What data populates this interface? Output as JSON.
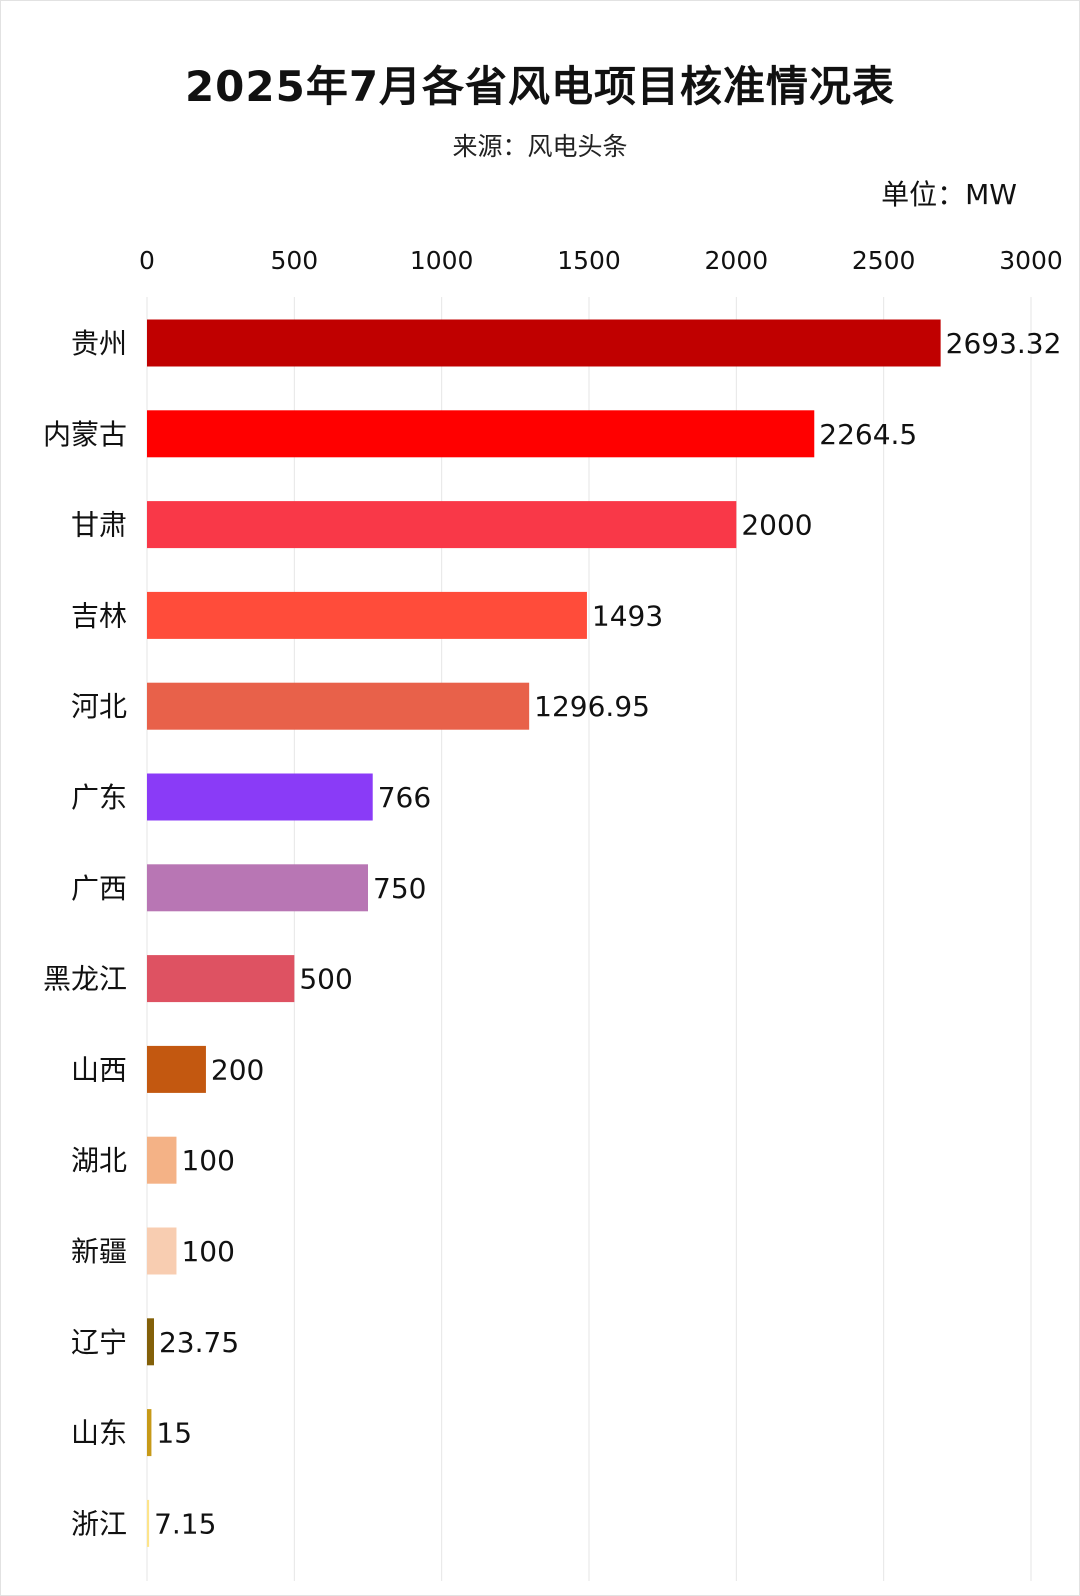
{
  "header": {
    "title": "2025年7月各省风电项目核准情况表",
    "source": "来源：风电头条",
    "unit": "单位：MW"
  },
  "chart_data": {
    "type": "bar",
    "orientation": "horizontal",
    "title": "2025年7月各省风电项目核准情况表",
    "subtitle": "来源：风电头条",
    "unit": "单位：MW",
    "xlim": [
      0,
      3000
    ],
    "x_ticks": [
      "0",
      "500",
      "1000",
      "1500",
      "2000",
      "2500",
      "3000"
    ],
    "x_tick_values": [
      0,
      500,
      1000,
      1500,
      2000,
      2500,
      3000
    ],
    "x_axis_position": "top",
    "grid": true,
    "legend": "none",
    "categories": [
      "贵州",
      "内蒙古",
      "甘肃",
      "吉林",
      "河北",
      "广东",
      "广西",
      "黑龙江",
      "山西",
      "湖北",
      "新疆",
      "辽宁",
      "山东",
      "浙江"
    ],
    "values": [
      2693.32,
      2264.5,
      2000,
      1493,
      1296.95,
      766,
      750,
      500,
      200,
      100,
      100,
      23.75,
      15,
      7.15
    ],
    "value_labels": [
      "2693.32",
      "2264.5",
      "2000",
      "1493",
      "1296.95",
      "766",
      "750",
      "500",
      "200",
      "100",
      "100",
      "23.75",
      "15",
      "7.15"
    ],
    "colors": [
      "#C00000",
      "#FF0000",
      "#F93848",
      "#FF4C3A",
      "#E8614A",
      "#8A3BF7",
      "#B876B4",
      "#DE5262",
      "#C35810",
      "#F4B286",
      "#F8CDB1",
      "#836009",
      "#C79A18",
      "#FDE48A"
    ]
  }
}
